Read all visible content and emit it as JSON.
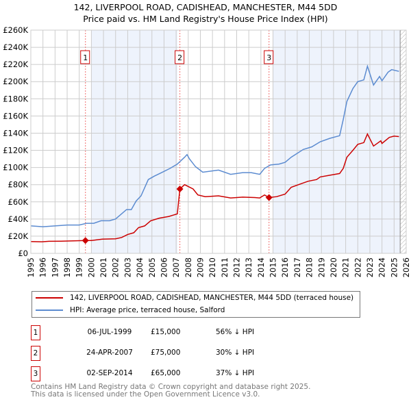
{
  "chart_data": {
    "type": "line",
    "title": "142, LIVERPOOL ROAD, CADISHEAD, MANCHESTER, M44 5DD",
    "subtitle": "Price paid vs. HM Land Registry's House Price Index (HPI)",
    "xlim": [
      1995,
      2026
    ],
    "ylim": [
      0,
      260000
    ],
    "x_ticks": [
      "1995",
      "1996",
      "1997",
      "1998",
      "1999",
      "2000",
      "2001",
      "2002",
      "2003",
      "2004",
      "2005",
      "2006",
      "2007",
      "2008",
      "2009",
      "2010",
      "2011",
      "2012",
      "2013",
      "2014",
      "2015",
      "2016",
      "2017",
      "2018",
      "2019",
      "2020",
      "2021",
      "2022",
      "2023",
      "2024",
      "2025",
      "2026"
    ],
    "y_ticks": [
      {
        "v": 0,
        "label": "£0"
      },
      {
        "v": 20000,
        "label": "£20K"
      },
      {
        "v": 40000,
        "label": "£40K"
      },
      {
        "v": 60000,
        "label": "£60K"
      },
      {
        "v": 80000,
        "label": "£80K"
      },
      {
        "v": 100000,
        "label": "£100K"
      },
      {
        "v": 120000,
        "label": "£120K"
      },
      {
        "v": 140000,
        "label": "£140K"
      },
      {
        "v": 160000,
        "label": "£160K"
      },
      {
        "v": 180000,
        "label": "£180K"
      },
      {
        "v": 200000,
        "label": "£200K"
      },
      {
        "v": 220000,
        "label": "£220K"
      },
      {
        "v": 240000,
        "label": "£240K"
      },
      {
        "v": 260000,
        "label": "£260K"
      }
    ],
    "grid": true,
    "shaded_ranges": [
      [
        2000,
        2007.1
      ],
      [
        2015,
        2025.5
      ]
    ],
    "forecast_from": 2025.5,
    "series": [
      {
        "name": "142, LIVERPOOL ROAD, CADISHEAD, MANCHESTER, M44 5DD (terraced house)",
        "color": "#cc0000",
        "points": [
          [
            1995,
            13800
          ],
          [
            1995.9,
            13500
          ],
          [
            1996.5,
            14000
          ],
          [
            1997.5,
            14200
          ],
          [
            1998.5,
            14500
          ],
          [
            1999.51,
            15000
          ],
          [
            2000,
            15000
          ],
          [
            2000.9,
            16500
          ],
          [
            2002,
            17000
          ],
          [
            2002.5,
            18500
          ],
          [
            2003,
            22000
          ],
          [
            2003.5,
            24000
          ],
          [
            2003.9,
            30000
          ],
          [
            2004.4,
            32000
          ],
          [
            2004.9,
            38000
          ],
          [
            2005.6,
            41000
          ],
          [
            2006.4,
            43000
          ],
          [
            2007.1,
            46000
          ],
          [
            2007.31,
            75000
          ],
          [
            2007.7,
            80000
          ],
          [
            2008.4,
            75000
          ],
          [
            2008.8,
            68000
          ],
          [
            2009.4,
            66000
          ],
          [
            2010.5,
            67000
          ],
          [
            2011.5,
            64500
          ],
          [
            2012.5,
            65500
          ],
          [
            2013.5,
            65000
          ],
          [
            2013.9,
            64500
          ],
          [
            2014.3,
            68000
          ],
          [
            2014.67,
            65000
          ],
          [
            2015.3,
            66000
          ],
          [
            2016,
            69000
          ],
          [
            2016.5,
            77000
          ],
          [
            2017.3,
            81000
          ],
          [
            2017.9,
            84000
          ],
          [
            2018.6,
            86000
          ],
          [
            2018.9,
            89000
          ],
          [
            2019.7,
            91000
          ],
          [
            2020.5,
            93000
          ],
          [
            2020.8,
            99000
          ],
          [
            2021.1,
            112000
          ],
          [
            2021.6,
            120000
          ],
          [
            2022,
            127000
          ],
          [
            2022.5,
            129000
          ],
          [
            2022.8,
            139000
          ],
          [
            2023.3,
            125000
          ],
          [
            2023.9,
            131000
          ],
          [
            2024,
            128000
          ],
          [
            2024.6,
            135000
          ],
          [
            2025,
            136500
          ],
          [
            2025.4,
            136000
          ]
        ]
      },
      {
        "name": "HPI: Average price, terraced house, Salford",
        "color": "#5b8bd0",
        "points": [
          [
            1995,
            32000
          ],
          [
            1996,
            31000
          ],
          [
            1997,
            32000
          ],
          [
            1998,
            33000
          ],
          [
            1999,
            33000
          ],
          [
            1999.6,
            35000
          ],
          [
            2000.2,
            35000
          ],
          [
            2000.8,
            38000
          ],
          [
            2001.5,
            38000
          ],
          [
            2002,
            40000
          ],
          [
            2002.9,
            51000
          ],
          [
            2003.3,
            51000
          ],
          [
            2003.7,
            61000
          ],
          [
            2004.1,
            67000
          ],
          [
            2004.7,
            86000
          ],
          [
            2005.2,
            90000
          ],
          [
            2005.8,
            94000
          ],
          [
            2006.5,
            99000
          ],
          [
            2007.1,
            104000
          ],
          [
            2007.7,
            112000
          ],
          [
            2007.9,
            115000
          ],
          [
            2008.1,
            110000
          ],
          [
            2008.6,
            101000
          ],
          [
            2009.2,
            94500
          ],
          [
            2010.5,
            97000
          ],
          [
            2011.5,
            92000
          ],
          [
            2012.5,
            94000
          ],
          [
            2013.2,
            94000
          ],
          [
            2013.9,
            92000
          ],
          [
            2014.3,
            99000
          ],
          [
            2014.8,
            103000
          ],
          [
            2015.5,
            104000
          ],
          [
            2016,
            106000
          ],
          [
            2016.5,
            112000
          ],
          [
            2017.5,
            121000
          ],
          [
            2018.2,
            124000
          ],
          [
            2018.9,
            130000
          ],
          [
            2019.7,
            134000
          ],
          [
            2020.5,
            137000
          ],
          [
            2020.8,
            156000
          ],
          [
            2021.1,
            177000
          ],
          [
            2021.6,
            192000
          ],
          [
            2022,
            200000
          ],
          [
            2022.5,
            202000
          ],
          [
            2022.8,
            218000
          ],
          [
            2023.3,
            196000
          ],
          [
            2023.8,
            206000
          ],
          [
            2024,
            201000
          ],
          [
            2024.5,
            211000
          ],
          [
            2024.8,
            214000
          ],
          [
            2025.4,
            212000
          ]
        ]
      }
    ],
    "sales": [
      {
        "id": "1",
        "x": 1999.51,
        "price": 15000
      },
      {
        "id": "2",
        "x": 2007.31,
        "price": 75000
      },
      {
        "id": "3",
        "x": 2014.67,
        "price": 65000
      }
    ]
  },
  "legend": {
    "property": "142, LIVERPOOL ROAD, CADISHEAD, MANCHESTER, M44 5DD (terraced house)",
    "hpi": "HPI: Average price, terraced house, Salford"
  },
  "transactions": [
    {
      "id": "1",
      "date": "06-JUL-1999",
      "price": "£15,000",
      "hpi": "56% ↓ HPI"
    },
    {
      "id": "2",
      "date": "24-APR-2007",
      "price": "£75,000",
      "hpi": "30% ↓ HPI"
    },
    {
      "id": "3",
      "date": "02-SEP-2014",
      "price": "£65,000",
      "hpi": "37% ↓ HPI"
    }
  ],
  "footer": {
    "line1": "Contains HM Land Registry data © Crown copyright and database right 2025.",
    "line2": "This data is licensed under the Open Government Licence v3.0."
  }
}
